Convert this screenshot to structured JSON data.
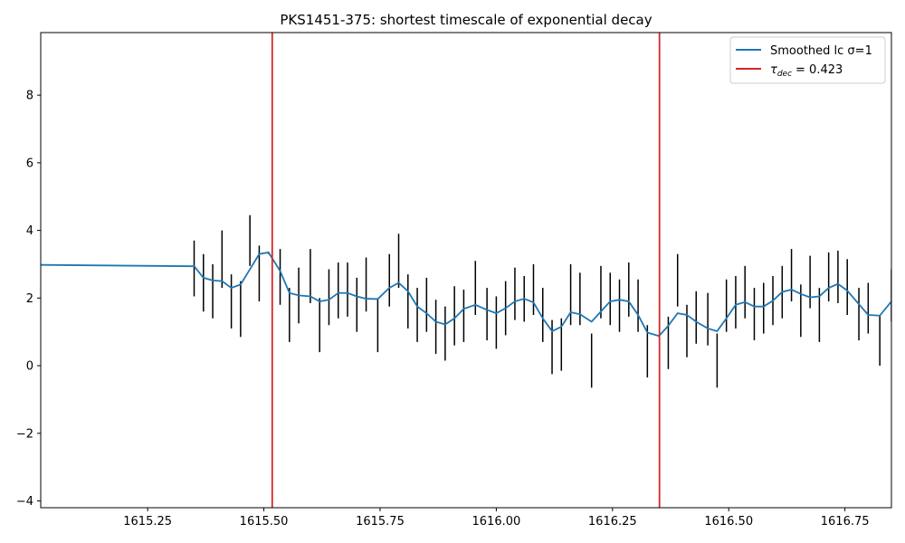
{
  "chart_data": {
    "type": "line",
    "title": "PKS1451-375: shortest timescale of exponential decay",
    "xlabel": "",
    "ylabel": "",
    "xlim": [
      1615.02,
      1616.85
    ],
    "ylim": [
      -4.2,
      9.85
    ],
    "x_ticks": [
      1615.25,
      1615.5,
      1615.75,
      1616.0,
      1616.25,
      1616.5,
      1616.75
    ],
    "x_tick_labels": [
      "1615.25",
      "1615.50",
      "1615.75",
      "1616.00",
      "1616.25",
      "1616.50",
      "1616.75"
    ],
    "y_ticks": [
      -4,
      -2,
      0,
      2,
      4,
      6,
      8
    ],
    "y_tick_labels": [
      "−4",
      "−2",
      "0",
      "2",
      "4",
      "6",
      "8"
    ],
    "legend_placement": "top-right",
    "grid": false,
    "colors": {
      "smoothed": "#1f77b4",
      "decay_line": "#d62728",
      "errorbar": "#000000"
    },
    "series": [
      {
        "name": "Smoothed lc σ=1",
        "legend_label": "Smoothed lc σ=1",
        "x": [
          1615.02,
          1615.35,
          1615.37,
          1615.39,
          1615.41,
          1615.43,
          1615.45,
          1615.47,
          1615.49,
          1615.51,
          1615.535,
          1615.555,
          1615.575,
          1615.6,
          1615.62,
          1615.64,
          1615.66,
          1615.68,
          1615.7,
          1615.72,
          1615.745,
          1615.77,
          1615.79,
          1615.81,
          1615.83,
          1615.85,
          1615.87,
          1615.89,
          1615.91,
          1615.93,
          1615.955,
          1615.98,
          1616.0,
          1616.02,
          1616.04,
          1616.06,
          1616.08,
          1616.1,
          1616.12,
          1616.14,
          1616.16,
          1616.18,
          1616.205,
          1616.225,
          1616.245,
          1616.265,
          1616.285,
          1616.305,
          1616.325,
          1616.35,
          1616.37,
          1616.39,
          1616.41,
          1616.43,
          1616.455,
          1616.475,
          1616.495,
          1616.515,
          1616.535,
          1616.555,
          1616.575,
          1616.595,
          1616.615,
          1616.635,
          1616.655,
          1616.675,
          1616.695,
          1616.715,
          1616.735,
          1616.755,
          1616.78,
          1616.8,
          1616.825,
          1616.85
        ],
        "y": [
          2.98,
          2.94,
          2.6,
          2.52,
          2.5,
          2.3,
          2.4,
          2.85,
          3.3,
          3.35,
          2.8,
          2.15,
          2.08,
          2.05,
          1.9,
          1.95,
          2.15,
          2.15,
          2.05,
          1.98,
          1.97,
          2.3,
          2.45,
          2.2,
          1.75,
          1.55,
          1.3,
          1.22,
          1.4,
          1.68,
          1.8,
          1.65,
          1.55,
          1.7,
          1.9,
          1.98,
          1.87,
          1.4,
          1.02,
          1.15,
          1.58,
          1.52,
          1.3,
          1.6,
          1.9,
          1.95,
          1.9,
          1.5,
          0.98,
          0.88,
          1.18,
          1.55,
          1.5,
          1.3,
          1.1,
          1.02,
          1.4,
          1.8,
          1.88,
          1.75,
          1.75,
          1.92,
          2.18,
          2.25,
          2.12,
          2.02,
          2.05,
          2.3,
          2.42,
          2.22,
          1.82,
          1.5,
          1.48,
          1.9
        ]
      },
      {
        "name": "τ_dec = 0.423",
        "legend_label": "= 0.423",
        "legend_symbol": "τ",
        "legend_subscript": "dec",
        "type": "vline",
        "x": [
          1615.518,
          1616.351
        ]
      }
    ],
    "errorbars": {
      "x": [
        1615.35,
        1615.37,
        1615.39,
        1615.41,
        1615.43,
        1615.45,
        1615.47,
        1615.49,
        1615.51,
        1615.535,
        1615.555,
        1615.575,
        1615.6,
        1615.62,
        1615.64,
        1615.66,
        1615.68,
        1615.7,
        1615.72,
        1615.745,
        1615.77,
        1615.79,
        1615.81,
        1615.83,
        1615.85,
        1615.87,
        1615.89,
        1615.91,
        1615.93,
        1615.955,
        1615.98,
        1616.0,
        1616.02,
        1616.04,
        1616.06,
        1616.08,
        1616.1,
        1616.12,
        1616.14,
        1616.16,
        1616.18,
        1616.205,
        1616.225,
        1616.245,
        1616.265,
        1616.285,
        1616.305,
        1616.325,
        1616.35,
        1616.37,
        1616.39,
        1616.41,
        1616.43,
        1616.455,
        1616.475,
        1616.495,
        1616.515,
        1616.535,
        1616.555,
        1616.575,
        1616.595,
        1616.615,
        1616.635,
        1616.655,
        1616.675,
        1616.695,
        1616.715,
        1616.735,
        1616.755,
        1616.78,
        1616.8,
        1616.825,
        1616.85
      ],
      "low": [
        2.05,
        1.6,
        1.4,
        2.3,
        1.1,
        0.85,
        2.95,
        1.9,
        3.3,
        1.8,
        0.7,
        1.25,
        1.85,
        0.4,
        1.2,
        1.4,
        1.45,
        1.0,
        1.6,
        0.4,
        1.75,
        2.3,
        1.1,
        0.7,
        1.0,
        0.35,
        0.15,
        0.6,
        0.7,
        1.5,
        0.75,
        0.5,
        0.9,
        1.35,
        1.3,
        1.5,
        0.7,
        -0.25,
        -0.15,
        1.2,
        1.2,
        -0.65,
        1.4,
        1.2,
        1.0,
        1.45,
        1.0,
        -0.35,
        0.85,
        -0.1,
        1.75,
        0.25,
        0.65,
        0.6,
        -0.65,
        1.0,
        1.1,
        1.4,
        0.75,
        0.95,
        1.2,
        1.4,
        1.9,
        0.85,
        1.7,
        0.7,
        1.9,
        1.85,
        1.5,
        0.75,
        0.95,
        0.0,
        1.3
      ],
      "high": [
        3.7,
        3.3,
        3.0,
        4.0,
        2.7,
        2.5,
        4.45,
        3.55,
        3.35,
        3.45,
        2.3,
        2.9,
        3.45,
        2.0,
        2.85,
        3.05,
        3.05,
        2.6,
        3.2,
        2.0,
        3.3,
        3.9,
        2.7,
        2.3,
        2.6,
        1.95,
        1.75,
        2.35,
        2.25,
        3.1,
        2.3,
        2.05,
        2.5,
        2.9,
        2.65,
        3.0,
        2.3,
        1.35,
        1.4,
        3.0,
        2.75,
        0.95,
        2.95,
        2.75,
        2.55,
        3.05,
        2.55,
        1.2,
        0.88,
        1.45,
        3.3,
        1.8,
        2.2,
        2.15,
        0.95,
        2.55,
        2.65,
        2.95,
        2.3,
        2.45,
        2.65,
        2.95,
        3.45,
        2.4,
        3.25,
        2.3,
        3.35,
        3.4,
        3.15,
        2.3,
        2.45,
        1.5,
        2.85
      ]
    }
  }
}
